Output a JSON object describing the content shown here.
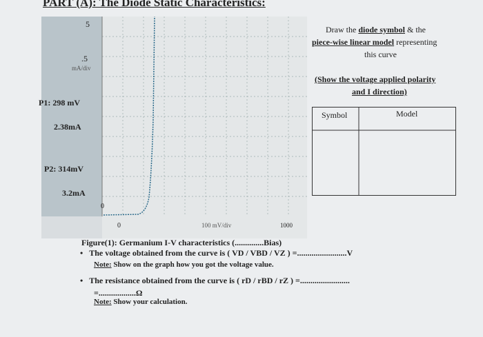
{
  "header": {
    "title": "PART (A): The Diode Static Characteristics:"
  },
  "graph": {
    "y_scale_top": "5",
    "y_scale_mid": ".5",
    "y_unit": "mA/div",
    "p1_voltage": "P1: 298 mV",
    "p1_current": "2.38mA",
    "p2_voltage": "P2: 314mV",
    "p2_current": "3.2mA",
    "origin_y": "0",
    "origin_x": "0",
    "x_unit": "100 mV/div",
    "x_scale_right": "1000"
  },
  "instructions": {
    "line1_a": "Draw the ",
    "line1_b": "diode symbol",
    "line1_c": " & the",
    "line2_a": "piece-wise linear model",
    "line2_b": " representing",
    "line3": "this curve",
    "polarity_1": "(Show the voltage applied polarity",
    "polarity_2": "and I direction)"
  },
  "table": {
    "headers": [
      "Symbol",
      "Model"
    ]
  },
  "questions": {
    "caption": "Figure(1): Germanium I-V characteristics (..............Bias)",
    "voltage": "The voltage obtained from the curve is ( VD / VBD / VZ ) =........................V",
    "note1_label": "Note:",
    "note1_text": " Show on the graph how you got the voltage value.",
    "resistance": "The resistance obtained from the curve is ( rD / rBD / rZ ) =........................",
    "resistance_cont": "=..................Ω",
    "note2_label": "Note:",
    "note2_text": " Show your calculation."
  }
}
